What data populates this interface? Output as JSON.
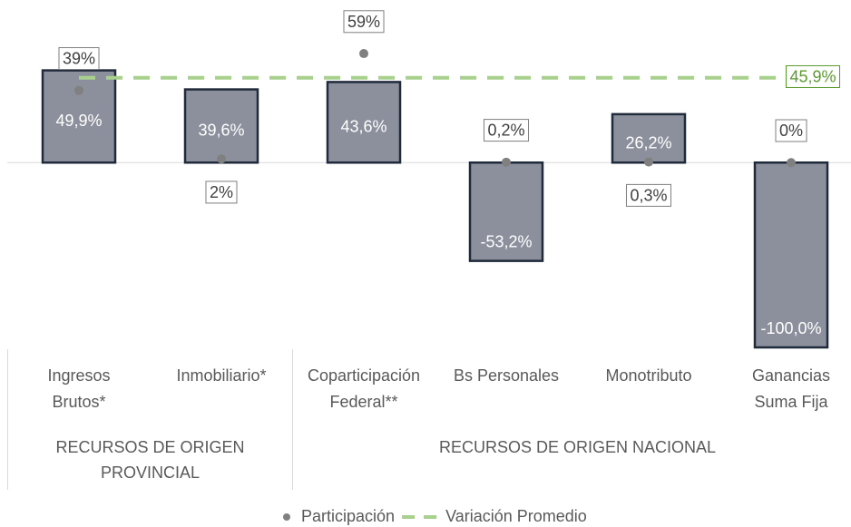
{
  "chart_data": {
    "type": "bar",
    "categories": [
      [
        "Ingresos",
        "Brutos*"
      ],
      [
        "Inmobiliario*"
      ],
      [
        "Coparticipación",
        "Federal**"
      ],
      [
        "Bs Personales"
      ],
      [
        "Monotributo"
      ],
      [
        "Ganancias",
        "Suma Fija"
      ]
    ],
    "values": [
      49.9,
      39.6,
      43.6,
      -53.2,
      26.2,
      -100.0
    ],
    "value_labels": [
      "49,9%",
      "39,6%",
      "43,6%",
      "-53,2%",
      "26,2%",
      "-100,0%"
    ],
    "color": "#8b909c",
    "edge_color": "#1f2a3a",
    "ylim": [
      -100,
      60
    ],
    "series": [
      {
        "name": "Participación",
        "color": "#808080",
        "values": [
          39,
          2,
          59,
          0.2,
          0.3,
          0
        ],
        "value_labels": [
          "39%",
          "2%",
          "59%",
          "0,2%",
          "0,3%",
          "0%"
        ],
        "label_position": [
          "above",
          "below",
          "above",
          "above",
          "below",
          "above"
        ]
      }
    ],
    "average": {
      "name": "Variación Promedio",
      "value": 45.9,
      "label": "45,9%",
      "color": "#a9d18e",
      "label_color": "#5b9a2e"
    },
    "groups": [
      {
        "label": [
          "RECURSOS DE ORIGEN",
          "PROVINCIAL"
        ],
        "count": 2
      },
      {
        "label": [
          "RECURSOS DE ORIGEN NACIONAL"
        ],
        "count": 4
      }
    ],
    "legend": "bottom"
  }
}
